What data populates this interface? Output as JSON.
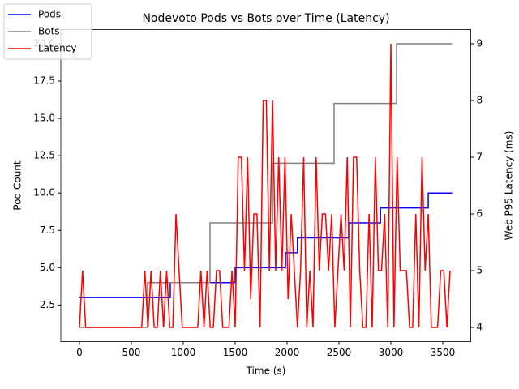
{
  "chart_data": {
    "type": "line",
    "title": "Nodevoto Pods vs Bots over Time (Latency)",
    "xlabel": "Time (s)",
    "ylabel": "Pod Count",
    "y2label": "Web P95 Latency (ms)",
    "xlim": [
      -179.5,
      3769.5
    ],
    "xticks": [
      0,
      500,
      1000,
      1500,
      2000,
      2500,
      3000,
      3500
    ],
    "ylim": [
      0.05,
      20.95
    ],
    "yticks": [
      {
        "value": 2.5,
        "label": "2.5"
      },
      {
        "value": 5,
        "label": "5.0"
      },
      {
        "value": 7.5,
        "label": "7.5"
      },
      {
        "value": 10,
        "label": "10.0"
      },
      {
        "value": 12.5,
        "label": "12.5"
      },
      {
        "value": 15,
        "label": "15.0"
      },
      {
        "value": 17.5,
        "label": "17.5"
      },
      {
        "value": 20,
        "label": "20.0"
      }
    ],
    "y2lim": [
      3.75,
      9.25
    ],
    "y2ticks": [
      4,
      5,
      6,
      7,
      8,
      9
    ],
    "legend": "upper left",
    "series": [
      {
        "name": "Pods",
        "color": "#0000ff",
        "x": [
          0,
          875,
          875,
          1500,
          1500,
          1985,
          1985,
          2100,
          2100,
          2594,
          2594,
          2900,
          2900,
          3360,
          3360,
          3590
        ],
        "values": [
          3,
          3,
          4,
          4,
          5,
          5,
          6,
          6,
          7,
          7,
          8,
          8,
          9,
          9,
          10,
          10
        ]
      },
      {
        "name": "Bots",
        "color": "#808080",
        "x": [
          0,
          656,
          656,
          1258,
          1258,
          1860,
          1860,
          2453,
          2453,
          3055,
          3055,
          3590
        ],
        "values": [
          1,
          1,
          4,
          4,
          8,
          8,
          12,
          12,
          16,
          16,
          20,
          20
        ]
      },
      {
        "name": "Latency",
        "color": "#ff0000",
        "axis": "y2",
        "x": [
          0,
          30,
          60,
          90,
          120,
          150,
          180,
          210,
          240,
          270,
          300,
          330,
          360,
          390,
          420,
          450,
          480,
          510,
          540,
          570,
          600,
          630,
          660,
          690,
          720,
          750,
          780,
          810,
          840,
          870,
          900,
          930,
          960,
          990,
          1020,
          1050,
          1080,
          1110,
          1140,
          1170,
          1200,
          1230,
          1260,
          1290,
          1320,
          1350,
          1380,
          1410,
          1440,
          1470,
          1500,
          1530,
          1560,
          1590,
          1620,
          1650,
          1680,
          1710,
          1740,
          1770,
          1800,
          1830,
          1860,
          1890,
          1920,
          1950,
          1980,
          2010,
          2040,
          2070,
          2100,
          2130,
          2160,
          2190,
          2220,
          2250,
          2280,
          2310,
          2340,
          2370,
          2400,
          2430,
          2460,
          2490,
          2520,
          2550,
          2580,
          2610,
          2640,
          2670,
          2700,
          2730,
          2760,
          2790,
          2820,
          2850,
          2880,
          2910,
          2940,
          2970,
          3000,
          3030,
          3060,
          3090,
          3120,
          3150,
          3180,
          3210,
          3240,
          3270,
          3300,
          3330,
          3360,
          3390,
          3420,
          3450,
          3480,
          3510,
          3540,
          3570
        ],
        "values": [
          4,
          5,
          4,
          4,
          4,
          4,
          4,
          4,
          4,
          4,
          4,
          4,
          4,
          4,
          4,
          4,
          4,
          4,
          4,
          4,
          4,
          5,
          4,
          5,
          4,
          4,
          5,
          4,
          5,
          4,
          4,
          6,
          5,
          4,
          4,
          4,
          4,
          4,
          4,
          5,
          4,
          5,
          4,
          4,
          5,
          5,
          4,
          4,
          4,
          5,
          4,
          7,
          7,
          5,
          7,
          4.5,
          6,
          6,
          4,
          8,
          8,
          5,
          8,
          5,
          7,
          5,
          7,
          4.5,
          6,
          5,
          4,
          5,
          7,
          4,
          5,
          4,
          7,
          5,
          6,
          6,
          5,
          6,
          4,
          5,
          6,
          5,
          7,
          4,
          7,
          7,
          5,
          4,
          4,
          6,
          4,
          7,
          5,
          5,
          6,
          4,
          9,
          4,
          7,
          5,
          5,
          5,
          4,
          4,
          6,
          4,
          7,
          5,
          6,
          4,
          4,
          4,
          5,
          5,
          4,
          5
        ]
      }
    ]
  }
}
